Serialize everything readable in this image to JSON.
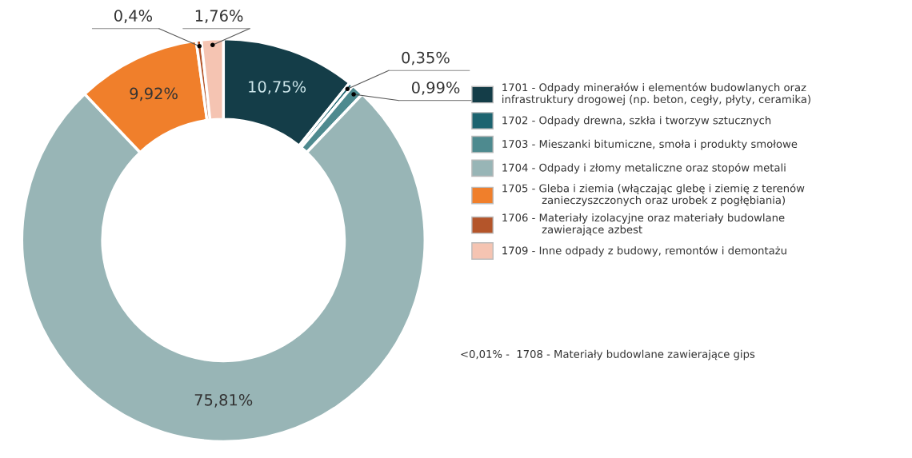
{
  "chart_data": {
    "type": "donut",
    "categories": [
      "1701 - Odpady minerałów i elementów budowlanych oraz\ninfrastruktury drogowej (np. beton, cegły, płyty, ceramika)",
      "1702 - Odpady drewna, szkła i tworzyw sztucznych",
      "1703 - Mieszanki bitumiczne, smoła i produkty smołowe",
      "1704 - Odpady i złomy metaliczne oraz stopów metali",
      "1705 - Gleba i ziemia (włączając glebę i ziemię z terenów\n            zanieczyszczonych oraz urobek z pogłębiania)",
      "1706 - Materiały izolacyjne oraz materiały budowlane\n            zawierające azbest",
      "1709 - Inne odpady z budowy, remontów i demontażu"
    ],
    "values": [
      10.75,
      0.35,
      0.99,
      75.81,
      9.92,
      0.4,
      1.76
    ],
    "value_labels": [
      "10,75%",
      "0,35%",
      "0,99%",
      "75,81%",
      "9,92%",
      "0,4%",
      "1,76%"
    ],
    "colors": [
      "#143d48",
      "#1d6470",
      "#4e8a8f",
      "#98b5b6",
      "#f07f2b",
      "#b4552a",
      "#f5c4b2"
    ],
    "legend": "right",
    "annotations": [
      "<0,01% -  1708 - Materiały budowlane zawierające gips"
    ]
  }
}
